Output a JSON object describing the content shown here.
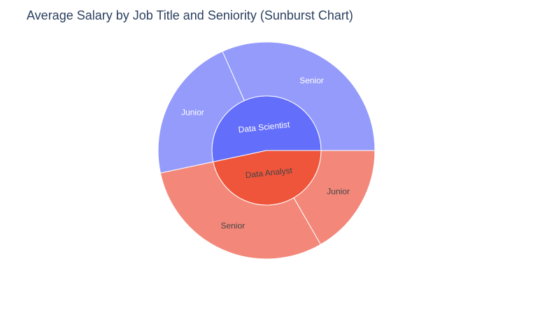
{
  "chart_data": {
    "type": "sunburst",
    "title": "Average Salary by Job Title and Seniority (Sunburst Chart)",
    "nodes": [
      {
        "label": "Data Scientist",
        "value": 160000,
        "color": "#636efa",
        "child_color": "#949bfb",
        "children": [
          {
            "label": "Senior",
            "value": 95000
          },
          {
            "label": "Junior",
            "value": 65000
          }
        ]
      },
      {
        "label": "Data Analyst",
        "value": 140000,
        "color": "#ef553b",
        "child_color": "#f3887a",
        "children": [
          {
            "label": "Senior",
            "value": 90000
          },
          {
            "label": "Junior",
            "value": 50000
          }
        ]
      }
    ]
  }
}
